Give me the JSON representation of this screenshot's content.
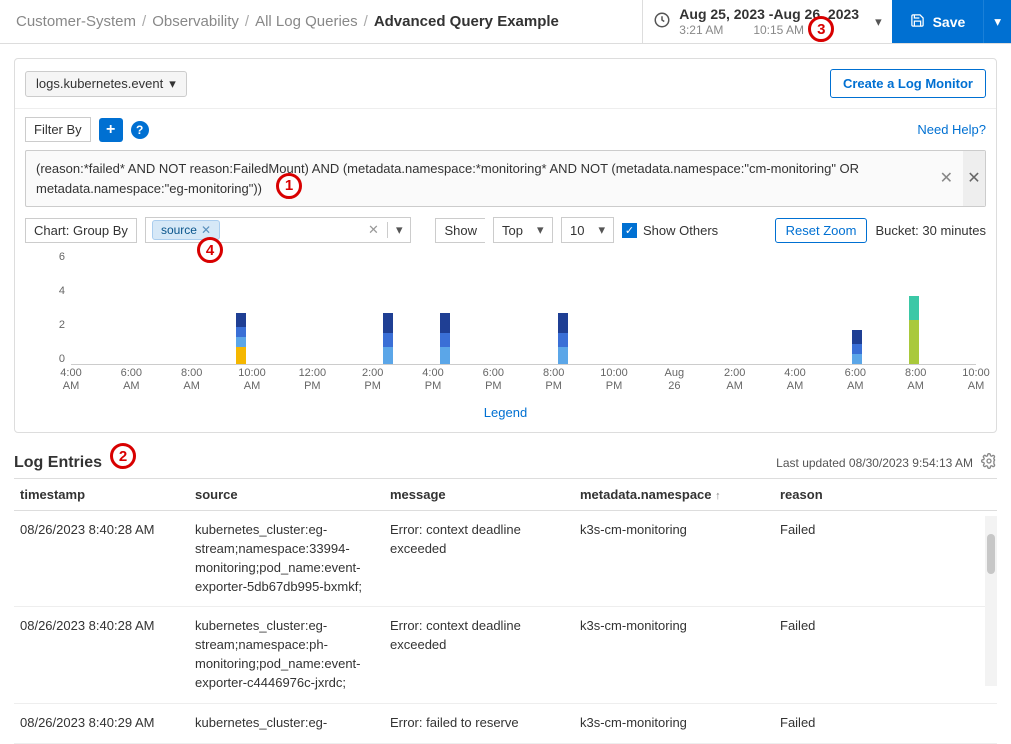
{
  "breadcrumb": {
    "p0": "Customer-System",
    "p1": "Observability",
    "p2": "All Log Queries",
    "p3": "Advanced Query Example"
  },
  "timerange": {
    "dateline": "Aug 25, 2023 -Aug 26, 2023",
    "start_time": "3:21 AM",
    "end_time": "10:15 AM"
  },
  "save_label": "Save",
  "source_selector": "logs.kubernetes.event",
  "create_monitor_label": "Create a Log Monitor",
  "filter_by_label": "Filter By",
  "need_help_label": "Need Help?",
  "query_text": "(reason:*failed* AND NOT reason:FailedMount) AND (metadata.namespace:*monitoring* AND NOT (metadata.namespace:\"cm-monitoring\" OR metadata.namespace:\"eg-monitoring\"))",
  "group_by_label": "Chart: Group By",
  "group_by_tag": "source",
  "show_label": "Show",
  "top_label": "Top",
  "count_label": "10",
  "show_others_label": "Show Others",
  "reset_zoom_label": "Reset Zoom",
  "bucket_label": "Bucket: 30 minutes",
  "legend_label": "Legend",
  "chart": {
    "ylim": [
      0,
      6
    ],
    "y_ticks": [
      0,
      2,
      4,
      6
    ],
    "x_ticks": [
      "4:00 AM",
      "6:00 AM",
      "8:00 AM",
      "10:00 AM",
      "12:00 PM",
      "2:00 PM",
      "4:00 PM",
      "6:00 PM",
      "8:00 PM",
      "10:00 PM",
      "Aug 26",
      "2:00 AM",
      "4:00 AM",
      "6:00 AM",
      "8:00 AM",
      "10:00 AM"
    ],
    "colors": {
      "blue1": "#1f3f94",
      "blue2": "#3a6fd6",
      "blue3": "#5ba6e8",
      "yellow": "#f5b700",
      "teal": "#3bc8a6",
      "olive": "#a9c93b"
    },
    "bars": [
      {
        "x_pct": 18.8,
        "segments": [
          {
            "c": "yellow",
            "v": 1.0
          },
          {
            "c": "blue3",
            "v": 0.6
          },
          {
            "c": "blue2",
            "v": 0.6
          },
          {
            "c": "blue1",
            "v": 0.8
          }
        ]
      },
      {
        "x_pct": 35.0,
        "segments": [
          {
            "c": "blue3",
            "v": 1.0
          },
          {
            "c": "blue2",
            "v": 0.8
          },
          {
            "c": "blue1",
            "v": 1.2
          }
        ]
      },
      {
        "x_pct": 41.3,
        "segments": [
          {
            "c": "blue3",
            "v": 1.0
          },
          {
            "c": "blue2",
            "v": 0.8
          },
          {
            "c": "blue1",
            "v": 1.2
          }
        ]
      },
      {
        "x_pct": 54.4,
        "segments": [
          {
            "c": "blue3",
            "v": 1.0
          },
          {
            "c": "blue2",
            "v": 0.8
          },
          {
            "c": "blue1",
            "v": 1.2
          }
        ]
      },
      {
        "x_pct": 86.9,
        "segments": [
          {
            "c": "blue3",
            "v": 0.6
          },
          {
            "c": "blue2",
            "v": 0.6
          },
          {
            "c": "blue1",
            "v": 0.8
          }
        ]
      },
      {
        "x_pct": 93.1,
        "segments": [
          {
            "c": "olive",
            "v": 2.6
          },
          {
            "c": "teal",
            "v": 1.4
          }
        ]
      }
    ]
  },
  "log_entries_title": "Log Entries",
  "last_updated": "Last updated 08/30/2023 9:54:13 AM",
  "columns": {
    "timestamp": "timestamp",
    "source": "source",
    "message": "message",
    "namespace": "metadata.namespace",
    "reason": "reason"
  },
  "rows": [
    {
      "timestamp": "08/26/2023 8:40:28 AM",
      "source": "kubernetes_cluster:eg-stream;namespace:33994-monitoring;pod_name:event-exporter-5db67db995-bxmkf;",
      "message": "Error: context deadline exceeded",
      "namespace": "k3s-cm-monitoring",
      "reason": "Failed"
    },
    {
      "timestamp": "08/26/2023 8:40:28 AM",
      "source": "kubernetes_cluster:eg-stream;namespace:ph-monitoring;pod_name:event-exporter-c4446976c-jxrdc;",
      "message": "Error: context deadline exceeded",
      "namespace": "k3s-cm-monitoring",
      "reason": "Failed"
    },
    {
      "timestamp": "08/26/2023 8:40:29 AM",
      "source": "kubernetes_cluster:eg-",
      "message": "Error: failed to reserve",
      "namespace": "k3s-cm-monitoring",
      "reason": "Failed"
    }
  ],
  "annotations": {
    "a1": "1",
    "a2": "2",
    "a3": "3",
    "a4": "4"
  }
}
